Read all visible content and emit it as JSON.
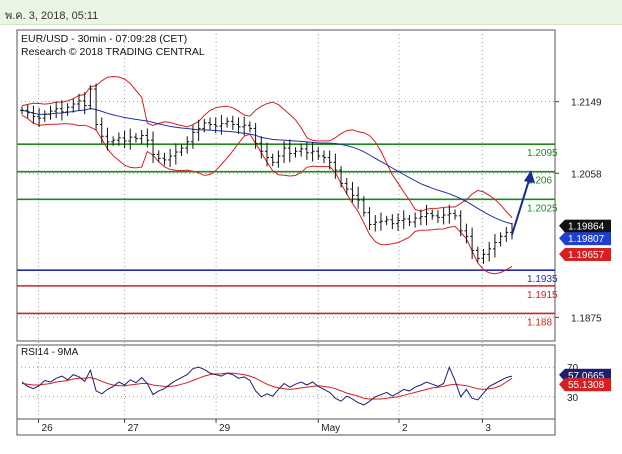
{
  "header": {
    "timestamp": "พ.ค. 3, 2018, 05:11"
  },
  "chart_data": {
    "type": "candlestick",
    "title": "EUR/USD - 30min - 07:09:28 (CET)",
    "subtitle": "Research © 2018 TRADING CENTRAL",
    "price_axis": {
      "ticks": [
        "1.2149",
        "1.2058",
        "1.1875"
      ],
      "ylim": [
        1.1845,
        1.224
      ]
    },
    "x_axis": {
      "ticks": [
        "26",
        "27",
        "29",
        "May",
        "2",
        "3"
      ]
    },
    "levels": [
      {
        "label": "1.2095",
        "value": 1.2095,
        "color": "#1e8a1e"
      },
      {
        "label": "1.206",
        "value": 1.206,
        "color": "#1e8a1e"
      },
      {
        "label": "1.2025",
        "value": 1.2025,
        "color": "#1e8a1e"
      },
      {
        "label": "1.1935",
        "value": 1.1935,
        "color": "#1f2fa8"
      },
      {
        "label": "1.1915",
        "value": 1.1915,
        "color": "#d42020"
      },
      {
        "label": "1.188",
        "value": 1.188,
        "color": "#d42020"
      }
    ],
    "price_tags": [
      {
        "label": "1.19864",
        "value": 1.19864,
        "color": "#111111"
      },
      {
        "label": "1.19807",
        "value": 1.19807,
        "color": "#1f3fcf"
      },
      {
        "label": "1.19657",
        "value": 1.19657,
        "color": "#d42020"
      }
    ],
    "forecast_arrow": {
      "from": 1.198,
      "to": 1.2062
    },
    "series": [
      {
        "values": [
          1.2138,
          1.2135,
          1.213,
          1.2128,
          1.2133,
          1.2137,
          1.214,
          1.2136,
          1.2142,
          1.2146,
          1.215,
          1.2144,
          1.2165,
          1.212,
          1.2105,
          1.2098,
          1.21,
          1.2103,
          1.2099,
          1.2104,
          1.2102,
          1.2106,
          1.21,
          1.2082,
          1.2077,
          1.2075,
          1.208,
          1.2085,
          1.209,
          1.2098,
          1.211,
          1.2115,
          1.2122,
          1.212,
          1.2118,
          1.2121,
          1.2124,
          1.212,
          1.2117,
          1.2119,
          1.2115,
          1.2096,
          1.2086,
          1.2078,
          1.2072,
          1.208,
          1.209,
          1.2083,
          1.2086,
          1.2089,
          1.2084,
          1.2086,
          1.208,
          1.2078,
          1.2072,
          1.2062,
          1.2045,
          1.2038,
          1.203,
          1.2024,
          1.2008,
          1.1993,
          1.1996,
          1.1997,
          1.1999,
          1.1994,
          1.1998,
          1.2,
          1.1996,
          1.2001,
          1.2003,
          1.2007,
          1.2004,
          1.2002,
          1.2005,
          1.2007,
          1.2004,
          1.1985,
          1.1978,
          1.196,
          1.195,
          1.1955,
          1.1962,
          1.197,
          1.1978,
          1.1983,
          1.1986
        ]
      }
    ],
    "rsi_panel": {
      "label": "RSI14 - 9MA",
      "ticks": [
        "70",
        "30"
      ],
      "ylim": [
        0,
        100
      ],
      "tags": [
        {
          "label": "57.0665",
          "value": 57.0665,
          "color": "#1f1f6f"
        },
        {
          "label": "55.1308",
          "value": 55.1308,
          "color": "#d42020"
        }
      ],
      "rsi": [
        50,
        44,
        41,
        45,
        52,
        50,
        55,
        58,
        53,
        60,
        57,
        51,
        66,
        38,
        34,
        40,
        44,
        50,
        46,
        53,
        49,
        56,
        48,
        33,
        38,
        41,
        47,
        52,
        56,
        60,
        68,
        70,
        67,
        62,
        60,
        58,
        62,
        60,
        55,
        57,
        52,
        38,
        30,
        34,
        31,
        40,
        48,
        43,
        47,
        50,
        46,
        50,
        44,
        40,
        36,
        28,
        24,
        31,
        27,
        22,
        19,
        24,
        30,
        33,
        36,
        31,
        35,
        40,
        38,
        43,
        46,
        50,
        47,
        44,
        48,
        70,
        52,
        30,
        40,
        28,
        26,
        35,
        44,
        48,
        52,
        56,
        58
      ],
      "ma": [
        48,
        47,
        46,
        46,
        47,
        48,
        50,
        51,
        52,
        54,
        55,
        55,
        56,
        54,
        51,
        48,
        46,
        45,
        45,
        46,
        47,
        48,
        48,
        46,
        45,
        44,
        44,
        45,
        47,
        49,
        52,
        55,
        58,
        60,
        61,
        61,
        62,
        62,
        61,
        60,
        58,
        55,
        51,
        47,
        44,
        42,
        41,
        40,
        41,
        42,
        43,
        44,
        45,
        44,
        43,
        41,
        38,
        35,
        33,
        31,
        28,
        27,
        27,
        27,
        28,
        29,
        30,
        32,
        34,
        36,
        38,
        40,
        42,
        43,
        44,
        46,
        47,
        46,
        45,
        43,
        41,
        40,
        41,
        42,
        45,
        50,
        55
      ]
    }
  }
}
